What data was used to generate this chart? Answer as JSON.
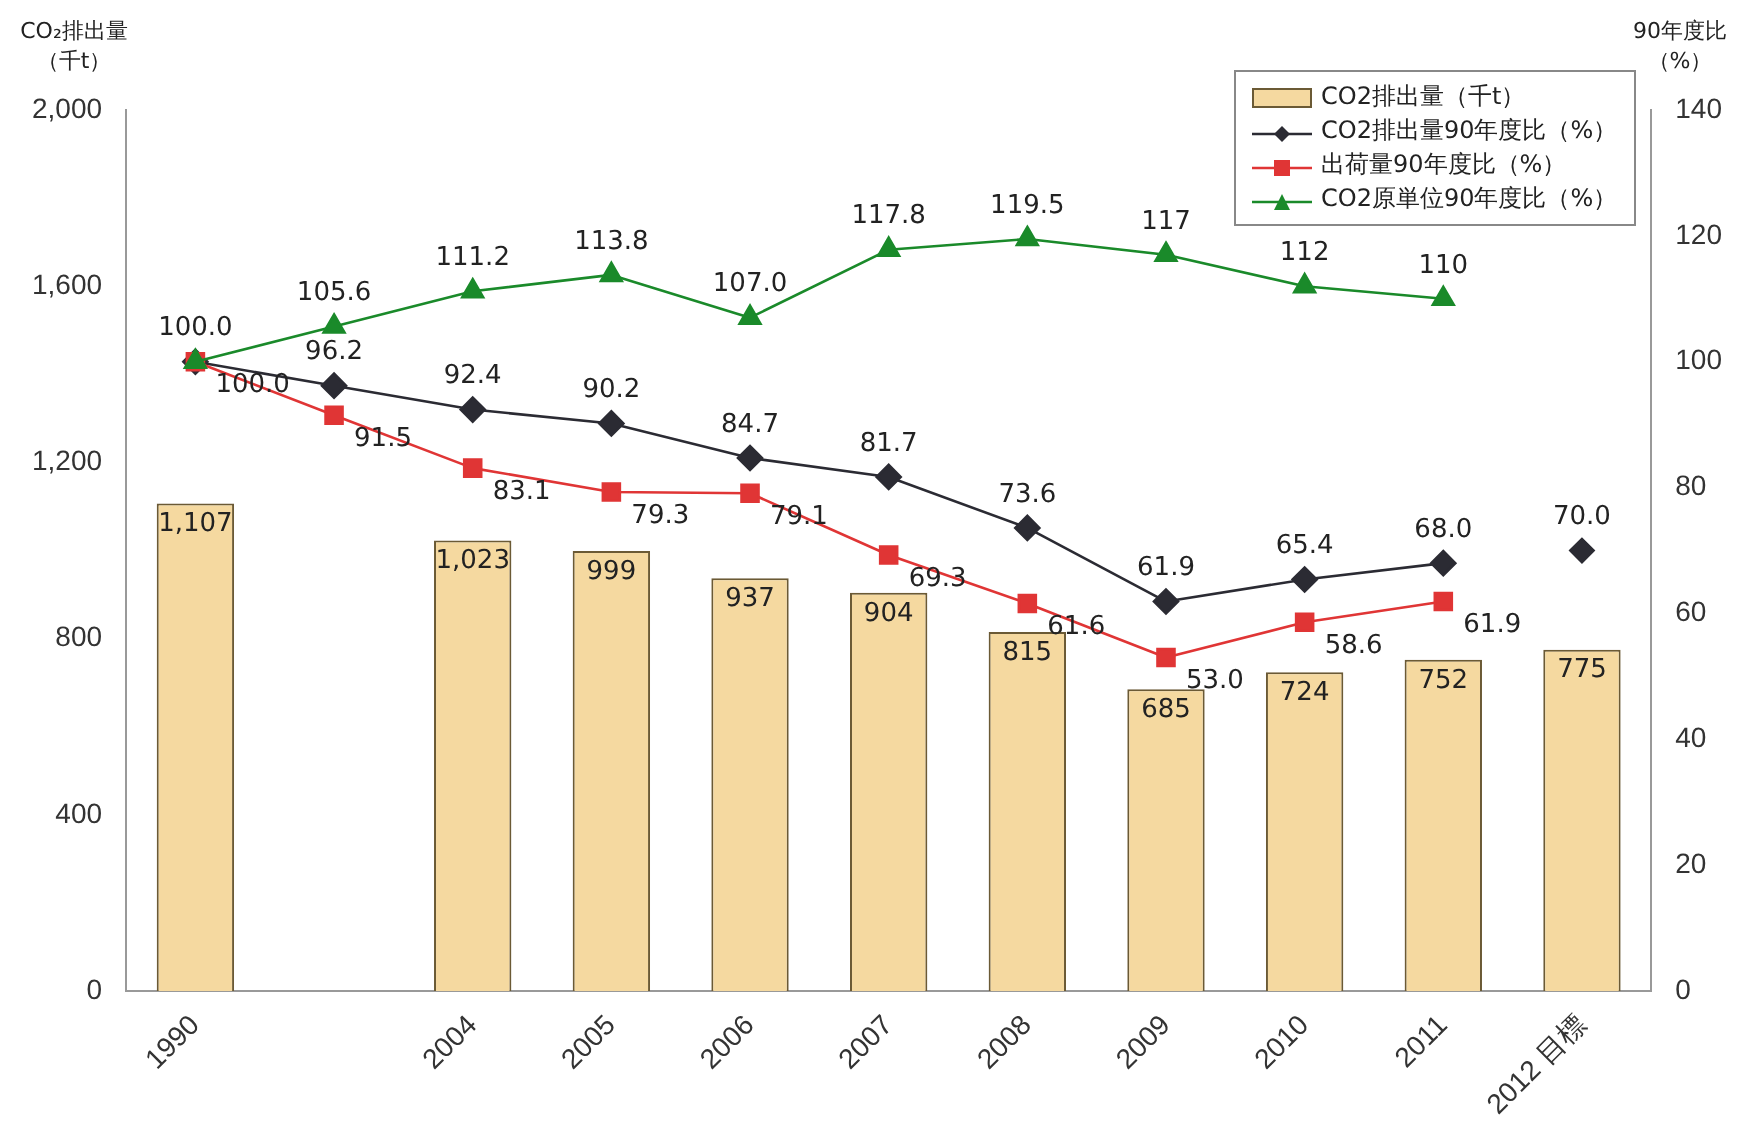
{
  "chart_data": {
    "type": "bar",
    "categories": [
      "1990",
      null,
      "2004",
      "2005",
      "2006",
      "2007",
      "2008",
      "2009",
      "2010",
      "2011",
      "2012 目標"
    ],
    "ylabel": "CO₂排出量（千t）",
    "y2label": "90年度比（%）",
    "ylim": [
      0,
      2000
    ],
    "yticks": [
      0,
      400,
      800,
      {
        "value": 1200,
        "label": "1,200"
      },
      {
        "value": 1600,
        "label": "1,600"
      },
      {
        "value": 2000,
        "label": "2,000"
      }
    ],
    "y2lim": [
      0,
      140
    ],
    "y2ticks": [
      0,
      20,
      40,
      60,
      80,
      100,
      120,
      140
    ],
    "grid": false,
    "legend": "top right",
    "data_labels": true,
    "series": [
      {
        "name": "CO2排出量（千t）",
        "color": "#f5d9a0",
        "values": [
          1107,
          null,
          1023,
          999,
          937,
          904,
          815,
          685,
          724,
          752,
          775
        ],
        "value_labels": [
          "1,107",
          null,
          "1,023",
          "999",
          "937",
          "904",
          "815",
          "685",
          "724",
          "752",
          "775"
        ]
      },
      {
        "name": "CO2排出量90年度比（%）",
        "type": "line",
        "axis": "y2",
        "marker": "diamond",
        "color": "#2b2b33",
        "values": [
          100.0,
          96.2,
          92.4,
          90.2,
          84.7,
          81.7,
          73.6,
          61.9,
          65.4,
          68.0,
          null
        ],
        "value_labels": [
          "100.0",
          "96.2",
          "92.4",
          "90.2",
          "84.7",
          "81.7",
          "73.6",
          "61.9",
          "65.4",
          "68.0",
          null
        ]
      },
      {
        "type": "scatter",
        "axis": "y2",
        "marker": "diamond",
        "color": "#2b2b33",
        "x": [
          "2012 目標"
        ],
        "values": [
          70.0
        ],
        "value_labels": [
          "70.0"
        ]
      },
      {
        "name": "出荷量90年度比（%）",
        "type": "line",
        "axis": "y2",
        "marker": "square",
        "color": "#e03535",
        "values": [
          100.0,
          91.5,
          83.1,
          79.3,
          79.1,
          69.3,
          61.6,
          53.0,
          58.6,
          61.9,
          null
        ],
        "value_labels": [
          "100.0",
          "91.5",
          "83.1",
          "79.3",
          "79.1",
          "69.3",
          "61.6",
          "53.0",
          "58.6",
          "61.9",
          null
        ]
      },
      {
        "name": "CO2原単位90年度比（%）",
        "type": "line",
        "axis": "y2",
        "marker": "triangle",
        "color": "#1a8a2a",
        "values": [
          100.0,
          105.6,
          111.2,
          113.8,
          107.0,
          117.8,
          119.5,
          117,
          112,
          110,
          null
        ],
        "value_labels": [
          null,
          "105.6",
          "111.2",
          "113.8",
          "107.0",
          "117.8",
          "119.5",
          "117",
          "112",
          "110",
          null
        ]
      }
    ]
  }
}
